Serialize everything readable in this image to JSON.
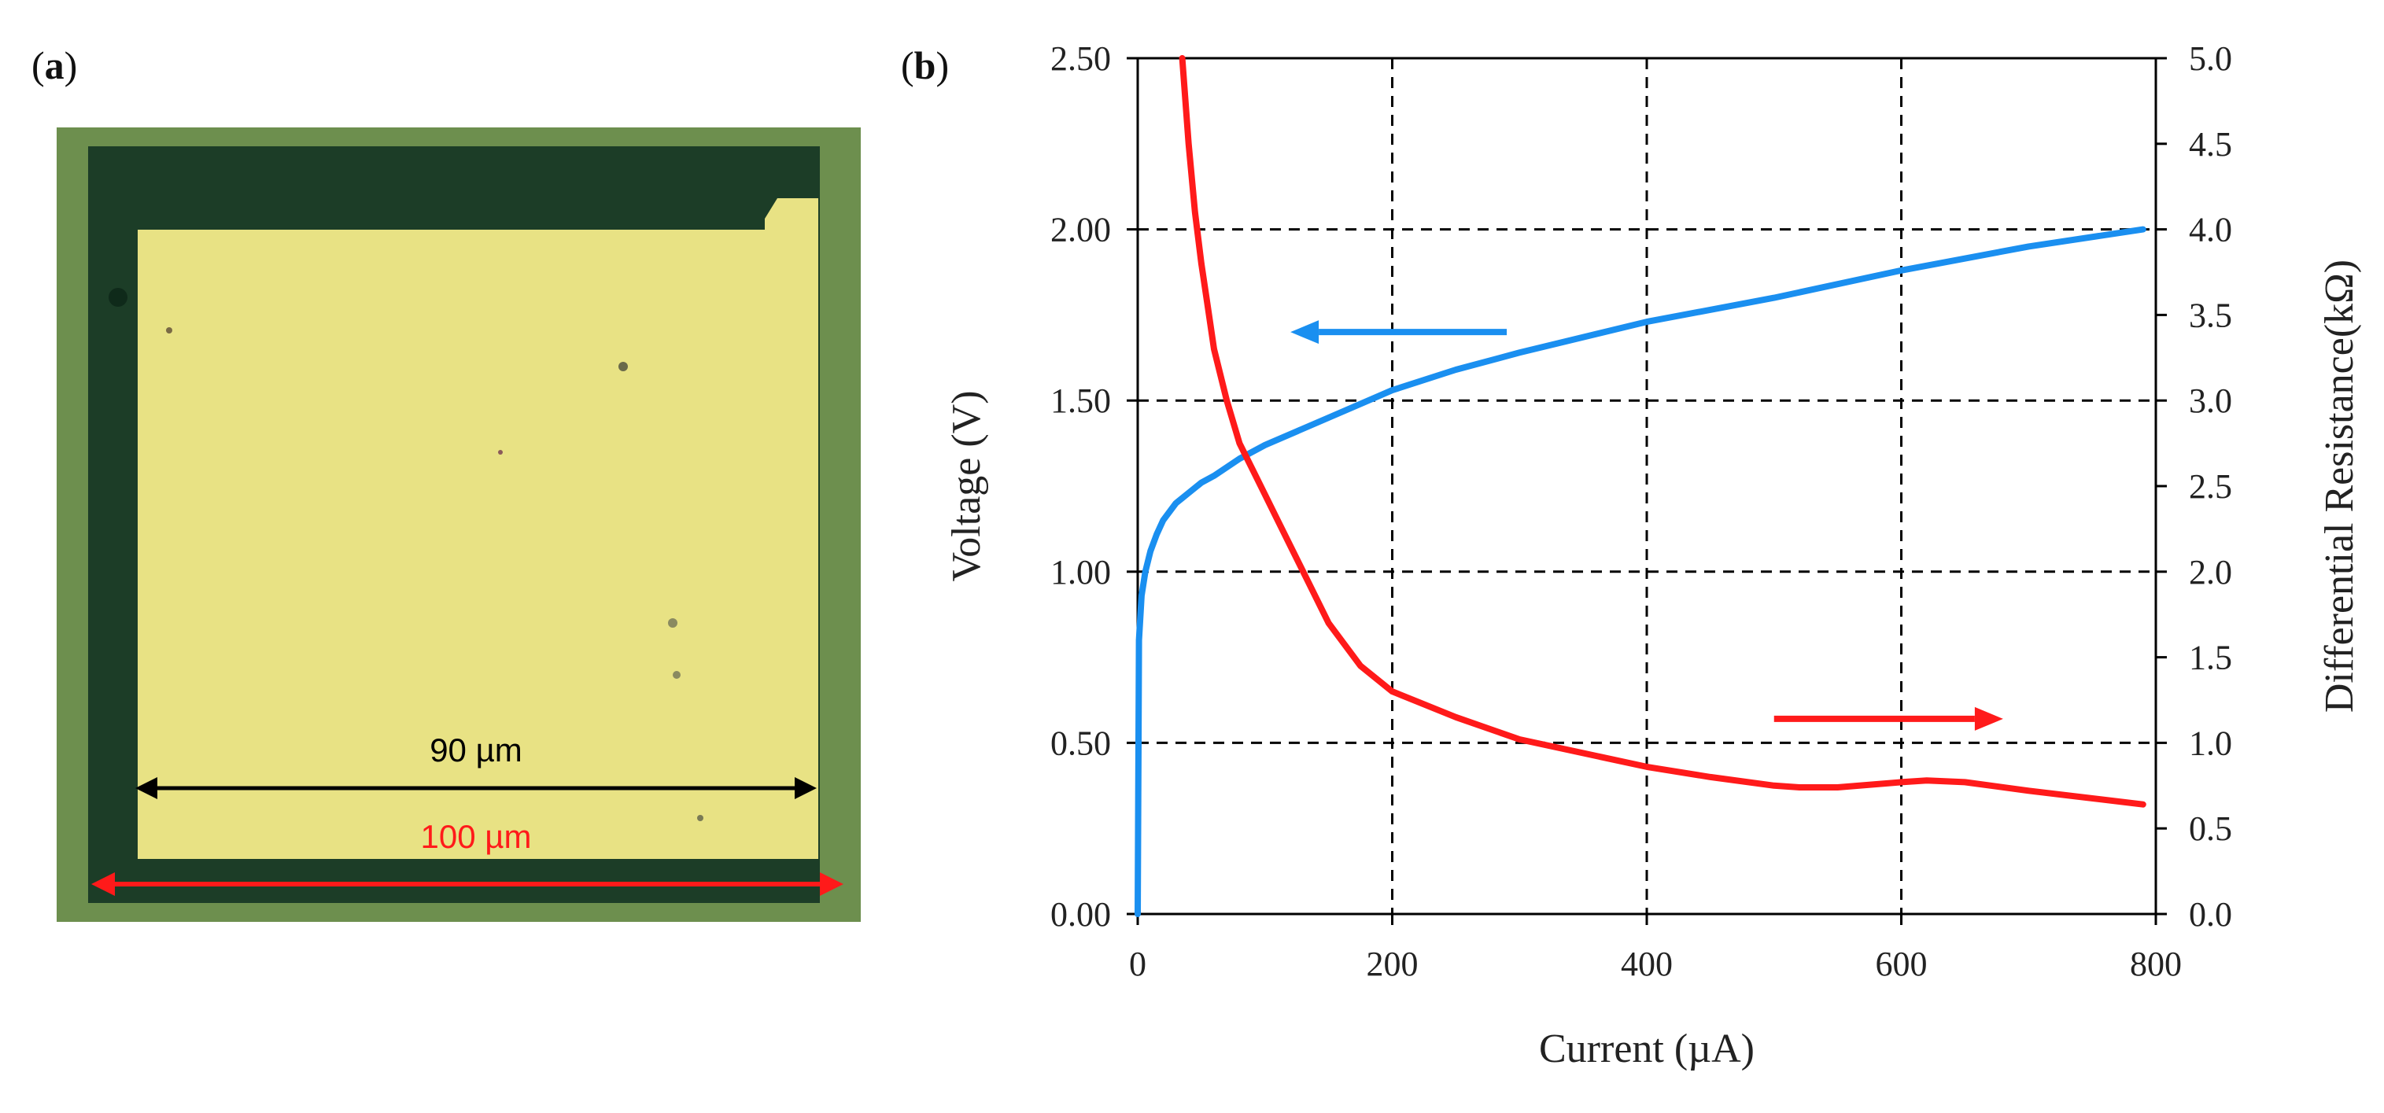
{
  "panels": {
    "a": {
      "label_open": "(",
      "label_letter": "a",
      "label_close": ")",
      "inner_measure": "90 µm",
      "outer_measure": "100 µm",
      "colors": {
        "frame": "#6d8f4e",
        "dark_border": "#1c3d27",
        "pad": "#e8e284",
        "inner_arrow": "#000000",
        "outer_arrow": "#ff1a1a"
      }
    },
    "b": {
      "label_open": "(",
      "label_letter": "b",
      "label_close": ")"
    }
  },
  "chart_data": {
    "type": "line",
    "xlabel": "Current (µA)",
    "ylabel_left": "Voltage (V)",
    "ylabel_right": "Differential Resistance(kΩ)",
    "xlim": [
      0,
      800
    ],
    "ylim_left": [
      0,
      2.5
    ],
    "ylim_right": [
      0,
      5.0
    ],
    "x_ticks": [
      "0",
      "200",
      "400",
      "600",
      "800"
    ],
    "y_left_ticks": [
      "0.00",
      "0.50",
      "1.00",
      "1.50",
      "2.00",
      "2.50"
    ],
    "y_right_ticks": [
      "0.0",
      "0.5",
      "1.0",
      "1.5",
      "2.0",
      "2.5",
      "3.0",
      "3.5",
      "4.0",
      "4.5",
      "5.0"
    ],
    "grid": "dashed at x = 200, 400, 600 and y = 0.5, 1.0, 1.5, 2.0",
    "series": [
      {
        "name": "Voltage",
        "axis": "left",
        "color": "#1a8ff0",
        "x": [
          0,
          1,
          3,
          6,
          10,
          15,
          20,
          30,
          40,
          50,
          60,
          80,
          100,
          125,
          150,
          200,
          250,
          300,
          400,
          500,
          600,
          700,
          790
        ],
        "y": [
          0,
          0.8,
          0.93,
          1.0,
          1.06,
          1.11,
          1.15,
          1.2,
          1.23,
          1.26,
          1.28,
          1.33,
          1.37,
          1.41,
          1.45,
          1.53,
          1.59,
          1.64,
          1.73,
          1.8,
          1.88,
          1.95,
          2.0
        ]
      },
      {
        "name": "Differential Resistance",
        "axis": "right",
        "color": "#ff1a1a",
        "x": [
          35,
          40,
          45,
          50,
          55,
          60,
          70,
          80,
          90,
          100,
          110,
          120,
          130,
          150,
          175,
          200,
          250,
          300,
          400,
          450,
          500,
          520,
          550,
          600,
          620,
          650,
          700,
          790
        ],
        "y": [
          5.0,
          4.5,
          4.1,
          3.8,
          3.55,
          3.3,
          3.0,
          2.75,
          2.6,
          2.45,
          2.3,
          2.15,
          2.0,
          1.7,
          1.45,
          1.3,
          1.15,
          1.02,
          0.86,
          0.8,
          0.75,
          0.74,
          0.74,
          0.77,
          0.78,
          0.77,
          0.72,
          0.64
        ]
      }
    ],
    "annotations": [
      {
        "name": "left-arrow",
        "color": "#1a8ff0",
        "direction": "left",
        "x_from": 290,
        "x_to": 120,
        "y_left": 1.7
      },
      {
        "name": "right-arrow",
        "color": "#ff1a1a",
        "direction": "right",
        "x_from": 500,
        "x_to": 680,
        "y_left": 0.57
      }
    ]
  }
}
